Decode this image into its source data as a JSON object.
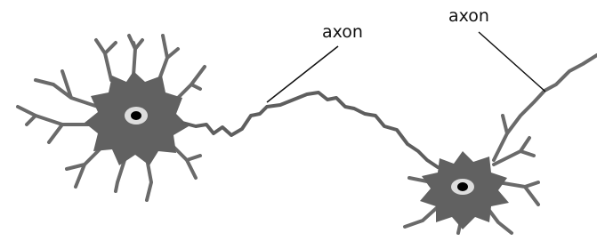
{
  "labels": [
    "axon",
    "axon"
  ]
}
